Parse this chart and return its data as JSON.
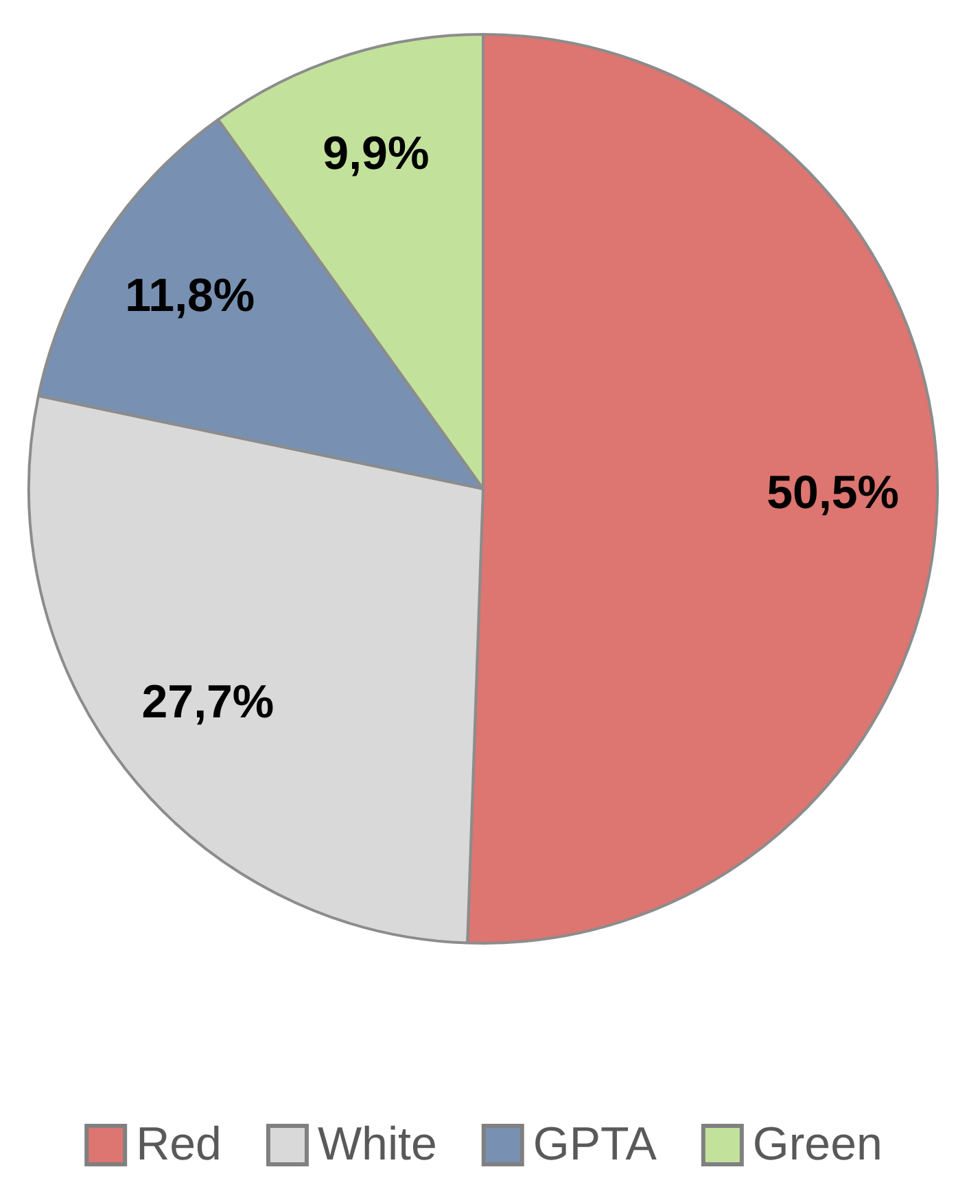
{
  "chart_data": {
    "type": "pie",
    "categories": [
      "Red",
      "White",
      "GPTA",
      "Green"
    ],
    "values": [
      50.5,
      27.7,
      11.8,
      9.9
    ],
    "colors": [
      "#dd7570",
      "#d9d9d9",
      "#7891b2",
      "#c2e29b"
    ],
    "value_labels": [
      "50,5%",
      "27,7%",
      "11,8%",
      "9,9%"
    ],
    "legend": "bottom"
  }
}
